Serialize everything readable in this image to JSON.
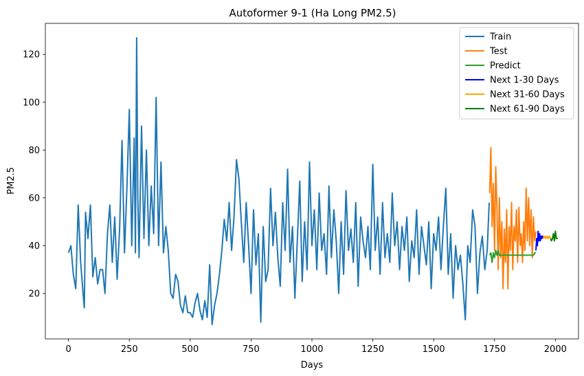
{
  "chart_data": {
    "type": "line",
    "title": "Autoformer 9-1 (Ha Long PM2.5)",
    "xlabel": "Days",
    "ylabel": "PM2.5",
    "xlim": [
      -95,
      2095
    ],
    "ylim": [
      1,
      133
    ],
    "xticks": [
      0,
      250,
      500,
      750,
      1000,
      1250,
      1500,
      1750,
      2000
    ],
    "yticks": [
      20,
      40,
      60,
      80,
      100,
      120
    ],
    "grid": false,
    "legend_position": "top-right",
    "series": [
      {
        "name": "Train",
        "color": "#1f77b4",
        "x": [
          0,
          10,
          20,
          30,
          40,
          50,
          60,
          65,
          70,
          80,
          90,
          100,
          110,
          120,
          130,
          140,
          150,
          160,
          170,
          180,
          190,
          200,
          210,
          220,
          230,
          240,
          250,
          260,
          270,
          275,
          280,
          285,
          290,
          300,
          310,
          320,
          330,
          340,
          350,
          360,
          370,
          380,
          390,
          400,
          410,
          420,
          430,
          440,
          450,
          460,
          470,
          480,
          490,
          500,
          510,
          520,
          530,
          540,
          550,
          560,
          570,
          580,
          590,
          600,
          610,
          620,
          630,
          640,
          650,
          660,
          670,
          680,
          690,
          700,
          710,
          720,
          730,
          740,
          750,
          760,
          770,
          780,
          790,
          800,
          810,
          820,
          830,
          840,
          850,
          860,
          870,
          880,
          890,
          900,
          910,
          920,
          930,
          940,
          950,
          960,
          970,
          980,
          990,
          1000,
          1010,
          1020,
          1030,
          1040,
          1050,
          1060,
          1070,
          1080,
          1090,
          1100,
          1110,
          1120,
          1130,
          1140,
          1150,
          1160,
          1170,
          1180,
          1190,
          1200,
          1210,
          1220,
          1230,
          1240,
          1250,
          1260,
          1270,
          1280,
          1290,
          1300,
          1310,
          1320,
          1330,
          1340,
          1350,
          1360,
          1370,
          1380,
          1390,
          1400,
          1410,
          1420,
          1430,
          1440,
          1450,
          1460,
          1470,
          1480,
          1490,
          1500,
          1510,
          1520,
          1530,
          1540,
          1550,
          1560,
          1570,
          1580,
          1590,
          1600,
          1610,
          1620,
          1630,
          1640,
          1650,
          1660,
          1670,
          1680,
          1690,
          1700,
          1710,
          1720,
          1728
        ],
        "y": [
          37,
          40,
          28,
          22,
          57,
          33,
          20,
          14,
          54,
          43,
          57,
          27,
          35,
          24,
          30,
          30,
          20,
          45,
          57,
          33,
          52,
          26,
          47,
          84,
          37,
          64,
          97,
          40,
          85,
          37,
          127,
          60,
          35,
          90,
          43,
          80,
          40,
          65,
          45,
          102,
          40,
          75,
          37,
          48,
          38,
          20,
          18,
          28,
          25,
          15,
          12,
          19,
          12,
          12,
          10,
          16,
          20,
          13,
          9,
          17,
          10,
          32,
          7,
          15,
          20,
          28,
          38,
          51,
          42,
          58,
          38,
          52,
          76,
          68,
          50,
          33,
          58,
          40,
          20,
          55,
          32,
          45,
          8,
          48,
          25,
          30,
          64,
          40,
          54,
          35,
          23,
          58,
          38,
          72,
          33,
          48,
          18,
          42,
          67,
          25,
          50,
          30,
          75,
          40,
          55,
          30,
          62,
          38,
          45,
          28,
          65,
          35,
          55,
          42,
          20,
          50,
          28,
          63,
          38,
          47,
          33,
          58,
          23,
          52,
          42,
          35,
          48,
          30,
          74,
          38,
          52,
          28,
          58,
          35,
          45,
          33,
          62,
          40,
          50,
          30,
          48,
          38,
          52,
          25,
          42,
          35,
          55,
          28,
          48,
          40,
          32,
          50,
          22,
          45,
          38,
          52,
          30,
          48,
          64,
          28,
          45,
          18,
          40,
          30,
          36,
          24,
          9,
          40,
          33,
          55,
          48,
          20,
          37,
          44,
          30,
          38,
          58
        ]
      },
      {
        "name": "Test",
        "color": "#ff7f0e",
        "x": [
          1730,
          1735,
          1740,
          1745,
          1750,
          1755,
          1760,
          1765,
          1770,
          1775,
          1780,
          1785,
          1790,
          1795,
          1800,
          1805,
          1810,
          1815,
          1820,
          1825,
          1830,
          1835,
          1840,
          1845,
          1850,
          1855,
          1860,
          1865,
          1870,
          1875,
          1880,
          1885,
          1890,
          1895,
          1900,
          1905,
          1910,
          1915,
          1920
        ],
        "y": [
          62,
          81,
          48,
          66,
          38,
          73,
          56,
          30,
          60,
          35,
          50,
          22,
          47,
          33,
          55,
          22,
          48,
          38,
          58,
          30,
          48,
          42,
          55,
          33,
          56,
          40,
          45,
          33,
          50,
          38,
          64,
          42,
          60,
          40,
          55,
          35,
          52,
          42,
          46
        ]
      },
      {
        "name": "Predict",
        "color": "#2ca02c",
        "x": [
          1730,
          1735,
          1740,
          1745,
          1750,
          1755,
          1760,
          1765,
          1770,
          1775,
          1780,
          1790,
          1800,
          1820,
          1840,
          1860,
          1880,
          1900,
          1910,
          1915,
          1920
        ],
        "y": [
          36,
          37,
          33,
          37,
          35,
          38,
          36,
          38,
          36,
          36,
          36,
          36,
          36,
          36,
          36,
          36,
          36,
          36,
          36,
          37,
          37
        ]
      },
      {
        "name": "Next 1-30 Days",
        "color": "#0000ff",
        "x": [
          1920,
          1923,
          1926,
          1929,
          1932,
          1935,
          1938,
          1941,
          1944,
          1947,
          1950
        ],
        "y": [
          38,
          43,
          40,
          46,
          42,
          45,
          42,
          44,
          43,
          44,
          43
        ]
      },
      {
        "name": "Next 31-60 Days",
        "color": "#ffa500",
        "x": [
          1950,
          1955,
          1960,
          1965,
          1970,
          1975,
          1980
        ],
        "y": [
          43,
          44,
          43,
          44,
          43,
          44,
          43
        ]
      },
      {
        "name": "Next 61-90 Days",
        "color": "#008000",
        "x": [
          1980,
          1984,
          1988,
          1992,
          1996,
          2000,
          2004,
          2010
        ],
        "y": [
          43,
          42,
          43,
          45,
          42,
          46,
          43,
          43
        ]
      }
    ]
  }
}
